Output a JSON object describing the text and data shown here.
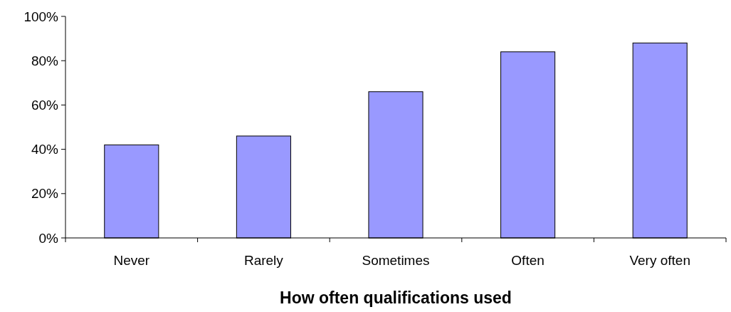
{
  "chart_data": {
    "type": "bar",
    "xlabel": "How often qualifications used",
    "categories": [
      "Never",
      "Rarely",
      "Sometimes",
      "Often",
      "Very often"
    ],
    "values": [
      42,
      46,
      66,
      84,
      88
    ],
    "color": "#9999ff",
    "ylim": [
      0,
      100
    ],
    "yticks": [
      {
        "value": 0,
        "label": "0%"
      },
      {
        "value": 20,
        "label": "20%"
      },
      {
        "value": 40,
        "label": "40%"
      },
      {
        "value": 60,
        "label": "60%"
      },
      {
        "value": 80,
        "label": "80%"
      },
      {
        "value": 100,
        "label": "100%"
      }
    ],
    "grid": false
  }
}
